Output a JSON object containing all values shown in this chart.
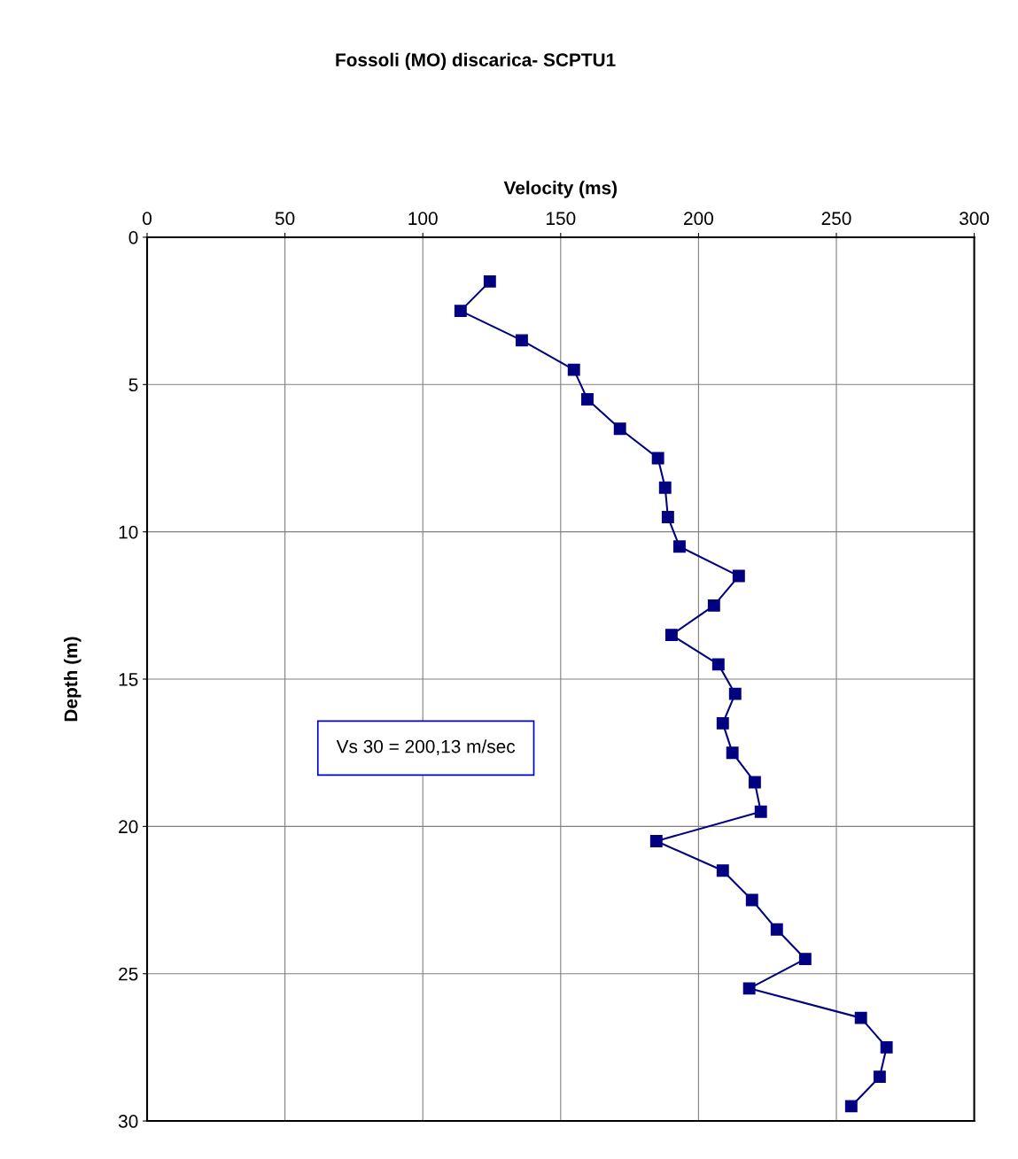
{
  "chart_data": {
    "type": "line",
    "title": "Fossoli (MO) discarica- SCPTU1",
    "xlabel": "Velocity (ms)",
    "ylabel": "Depth (m)",
    "annotations": [
      "Vs 30 = 200,13 m/sec"
    ],
    "series": [
      {
        "color": "#000080",
        "x": [
          124.3,
          113.7,
          135.9,
          154.8,
          159.7,
          171.5,
          185.3,
          187.9,
          188.9,
          193.1,
          214.6,
          205.6,
          190.2,
          207.2,
          213.3,
          208.8,
          212.3,
          220.4,
          222.6,
          184.7,
          208.8,
          219.4,
          228.4,
          238.7,
          218.4,
          258.9,
          268.2,
          265.7,
          255.4
        ],
        "values": [
          1.5,
          2.5,
          3.5,
          4.5,
          5.5,
          6.5,
          7.5,
          8.5,
          9.5,
          10.5,
          11.5,
          12.5,
          13.5,
          14.5,
          15.5,
          16.5,
          17.5,
          18.5,
          19.5,
          20.5,
          21.5,
          22.5,
          23.5,
          24.5,
          25.5,
          26.5,
          27.5,
          28.5,
          29.5
        ]
      }
    ],
    "xlim": [
      0,
      300
    ],
    "xticks": [
      0,
      50,
      100,
      150,
      200,
      250,
      300
    ],
    "ylim": [
      30,
      0
    ],
    "yticks": [
      0,
      5,
      10,
      15,
      20,
      25,
      30
    ],
    "grid": true,
    "marker": "square",
    "line_style": "solid",
    "legend": false
  }
}
